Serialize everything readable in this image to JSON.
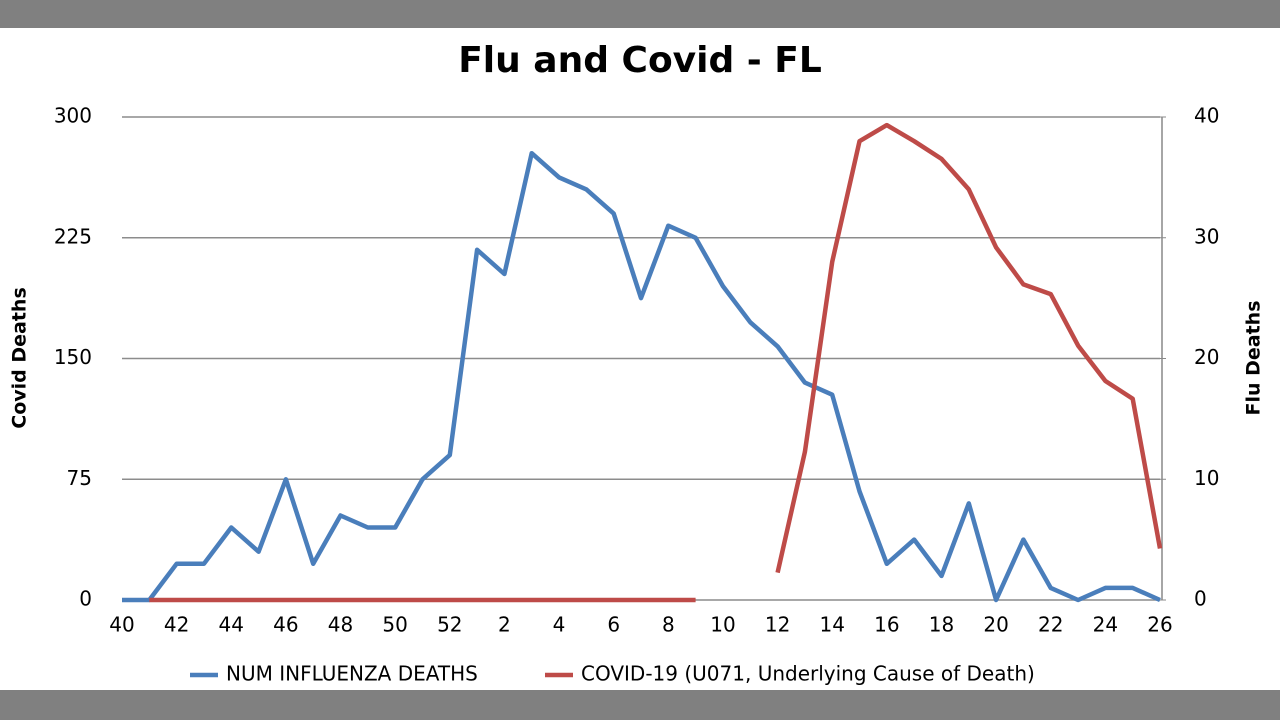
{
  "chart_data": {
    "type": "line",
    "title": "Flu and Covid - FL",
    "ylabel": "Covid Deaths",
    "y2label": "Flu Deaths",
    "categories": [
      40,
      null,
      42,
      null,
      44,
      null,
      46,
      null,
      48,
      null,
      50,
      null,
      52,
      null,
      2,
      null,
      4,
      null,
      6,
      null,
      8,
      null,
      10,
      null,
      12,
      null,
      14,
      null,
      16,
      null,
      18,
      null,
      20,
      null,
      22,
      null,
      24,
      null,
      26
    ],
    "series": [
      {
        "name": "NUM INFLUENZA DEATHS",
        "color": "#4a7ebb",
        "axis": "y2",
        "values": [
          0,
          0,
          3,
          3,
          6,
          4,
          10,
          3,
          7,
          6,
          6,
          10,
          12,
          29,
          27,
          37,
          35,
          34,
          32,
          25,
          31,
          30,
          26,
          23,
          21,
          18,
          17,
          9,
          3,
          5,
          2,
          8,
          0,
          5,
          1,
          0,
          1,
          1,
          0
        ]
      },
      {
        "name": "COVID-19 (U071, Underlying Cause of Death)",
        "color": "#be4b48",
        "axis": "y",
        "values": [
          null,
          0,
          0,
          0,
          0,
          0,
          0,
          0,
          0,
          0,
          0,
          0,
          0,
          0,
          0,
          0,
          0,
          0,
          0,
          0,
          0,
          0,
          null,
          null,
          17,
          92,
          210,
          285,
          295,
          285,
          274,
          255,
          219,
          196,
          190,
          158,
          136,
          125,
          32
        ]
      }
    ],
    "ylim": [
      0,
      300
    ],
    "yticks": [
      0,
      75,
      150,
      225,
      300
    ],
    "y2lim": [
      0,
      40
    ],
    "y2ticks": [
      0,
      10,
      20,
      30,
      40
    ],
    "grid": true,
    "legend": "bottom"
  }
}
